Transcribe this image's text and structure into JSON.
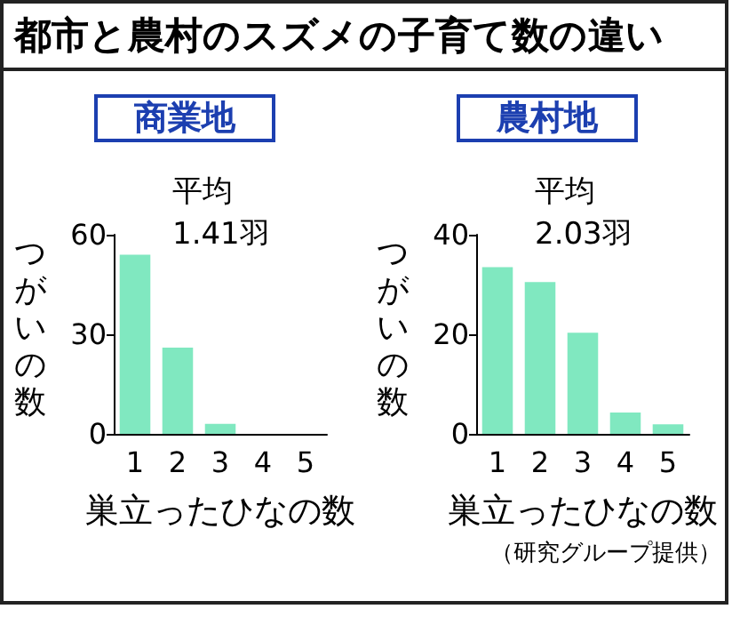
{
  "chart_data": [
    {
      "type": "bar",
      "title": "都市と農村のスズメの子育て数の違い",
      "subtitle": "商業地",
      "xlabel": "巣立ったひなの数",
      "ylabel": "つがいの数",
      "categories": [
        "1",
        "2",
        "3",
        "4",
        "5"
      ],
      "values": [
        54,
        26,
        3,
        0,
        0
      ],
      "color": "#80e8c0",
      "ylim": [
        0,
        60
      ],
      "yticks": [
        0,
        30,
        60
      ],
      "grid": false,
      "annotations": [
        "平均\n1.41羽"
      ]
    },
    {
      "type": "bar",
      "subtitle": "農村地",
      "xlabel": "巣立ったひなの数",
      "ylabel": "つがいの数",
      "categories": [
        "1",
        "2",
        "3",
        "4",
        "5"
      ],
      "values": [
        33.5,
        30.5,
        20.3,
        4.3,
        1.9
      ],
      "color": "#80e8c0",
      "ylim": [
        0,
        40
      ],
      "yticks": [
        0,
        20,
        40
      ],
      "grid": false,
      "annotations": [
        "平均\n2.03羽",
        "（研究グループ提供）"
      ]
    }
  ]
}
